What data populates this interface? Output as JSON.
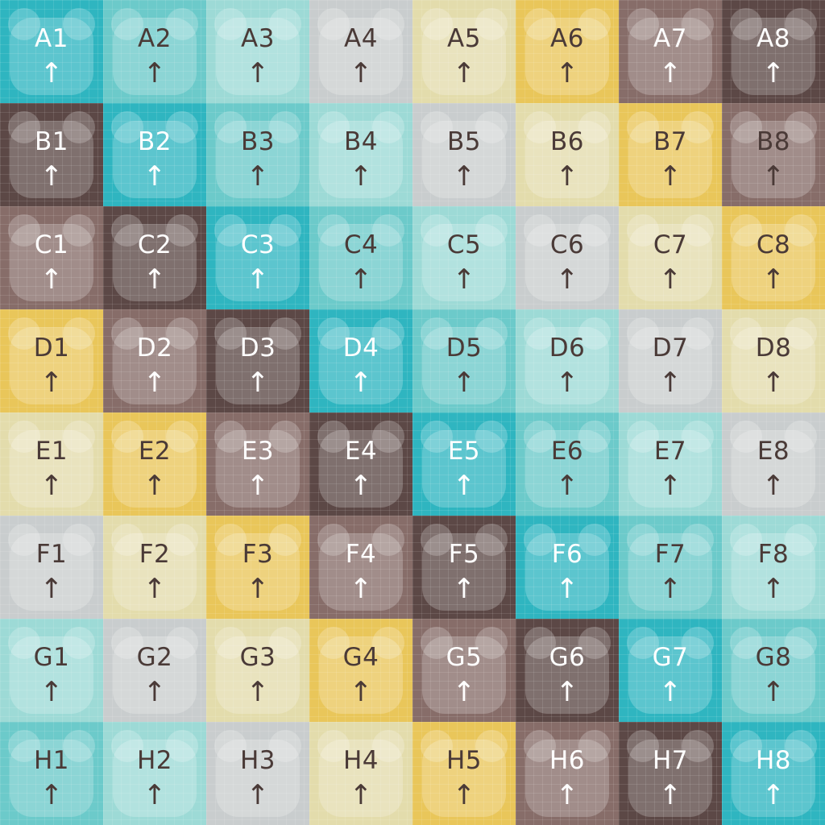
{
  "palette": {
    "teal": "#2fb5c0",
    "teal_mid": "#6ccaca",
    "teal_light": "#9ddad6",
    "gray": "#c9cdce",
    "cream": "#e3dcac",
    "yellow": "#e9c65a",
    "brown_mid": "#876d69",
    "brown_dark": "#5c4846",
    "text_light": "#ffffff",
    "text_dark": "#4a3a37"
  },
  "board": {
    "rows": [
      {
        "cells": [
          {
            "label": "A1",
            "arrow": "↑",
            "color": "teal"
          },
          {
            "label": "A2",
            "arrow": "↑",
            "color": "teal_mid"
          },
          {
            "label": "A3",
            "arrow": "↑",
            "color": "teal_light"
          },
          {
            "label": "A4",
            "arrow": "↑",
            "color": "gray"
          },
          {
            "label": "A5",
            "arrow": "↑",
            "color": "cream"
          },
          {
            "label": "A6",
            "arrow": "↑",
            "color": "yellow"
          },
          {
            "label": "A7",
            "arrow": "↑",
            "color": "brown_mid"
          },
          {
            "label": "A8",
            "arrow": "↑",
            "color": "brown_dark"
          }
        ]
      },
      {
        "cells": [
          {
            "label": "B1",
            "arrow": "↑",
            "color": "brown_dark"
          },
          {
            "label": "B2",
            "arrow": "↑",
            "color": "teal"
          },
          {
            "label": "B3",
            "arrow": "↑",
            "color": "teal_mid"
          },
          {
            "label": "B4",
            "arrow": "↑",
            "color": "teal_light"
          },
          {
            "label": "B5",
            "arrow": "↑",
            "color": "gray"
          },
          {
            "label": "B6",
            "arrow": "↑",
            "color": "cream"
          },
          {
            "label": "B7",
            "arrow": "↑",
            "color": "yellow"
          },
          {
            "label": "B8",
            "arrow": "↑",
            "color": "brown_mid"
          }
        ]
      },
      {
        "cells": [
          {
            "label": "C1",
            "arrow": "↑",
            "color": "brown_mid"
          },
          {
            "label": "C2",
            "arrow": "↑",
            "color": "brown_dark"
          },
          {
            "label": "C3",
            "arrow": "↑",
            "color": "teal"
          },
          {
            "label": "C4",
            "arrow": "↑",
            "color": "teal_mid"
          },
          {
            "label": "C5",
            "arrow": "↑",
            "color": "teal_light"
          },
          {
            "label": "C6",
            "arrow": "↑",
            "color": "gray"
          },
          {
            "label": "C7",
            "arrow": "↑",
            "color": "cream"
          },
          {
            "label": "C8",
            "arrow": "↑",
            "color": "yellow"
          }
        ]
      },
      {
        "cells": [
          {
            "label": "D1",
            "arrow": "↑",
            "color": "yellow"
          },
          {
            "label": "D2",
            "arrow": "↑",
            "color": "brown_mid"
          },
          {
            "label": "D3",
            "arrow": "↑",
            "color": "brown_dark"
          },
          {
            "label": "D4",
            "arrow": "↑",
            "color": "teal"
          },
          {
            "label": "D5",
            "arrow": "↑",
            "color": "teal_mid"
          },
          {
            "label": "D6",
            "arrow": "↑",
            "color": "teal_light"
          },
          {
            "label": "D7",
            "arrow": "↑",
            "color": "gray"
          },
          {
            "label": "D8",
            "arrow": "↑",
            "color": "cream"
          }
        ]
      },
      {
        "cells": [
          {
            "label": "E1",
            "arrow": "↑",
            "color": "cream"
          },
          {
            "label": "E2",
            "arrow": "↑",
            "color": "yellow"
          },
          {
            "label": "E3",
            "arrow": "↑",
            "color": "brown_mid"
          },
          {
            "label": "E4",
            "arrow": "↑",
            "color": "brown_dark"
          },
          {
            "label": "E5",
            "arrow": "↑",
            "color": "teal"
          },
          {
            "label": "E6",
            "arrow": "↑",
            "color": "teal_mid"
          },
          {
            "label": "E7",
            "arrow": "↑",
            "color": "teal_light"
          },
          {
            "label": "E8",
            "arrow": "↑",
            "color": "gray"
          }
        ]
      },
      {
        "cells": [
          {
            "label": "F1",
            "arrow": "↑",
            "color": "gray"
          },
          {
            "label": "F2",
            "arrow": "↑",
            "color": "cream"
          },
          {
            "label": "F3",
            "arrow": "↑",
            "color": "yellow"
          },
          {
            "label": "F4",
            "arrow": "↑",
            "color": "brown_mid"
          },
          {
            "label": "F5",
            "arrow": "↑",
            "color": "brown_dark"
          },
          {
            "label": "F6",
            "arrow": "↑",
            "color": "teal"
          },
          {
            "label": "F7",
            "arrow": "↑",
            "color": "teal_mid"
          },
          {
            "label": "F8",
            "arrow": "↑",
            "color": "teal_light"
          }
        ]
      },
      {
        "cells": [
          {
            "label": "G1",
            "arrow": "↑",
            "color": "teal_light"
          },
          {
            "label": "G2",
            "arrow": "↑",
            "color": "gray"
          },
          {
            "label": "G3",
            "arrow": "↑",
            "color": "cream"
          },
          {
            "label": "G4",
            "arrow": "↑",
            "color": "yellow"
          },
          {
            "label": "G5",
            "arrow": "↑",
            "color": "brown_mid"
          },
          {
            "label": "G6",
            "arrow": "↑",
            "color": "brown_dark"
          },
          {
            "label": "G7",
            "arrow": "↑",
            "color": "teal"
          },
          {
            "label": "G8",
            "arrow": "↑",
            "color": "teal_mid"
          }
        ]
      },
      {
        "cells": [
          {
            "label": "H1",
            "arrow": "↑",
            "color": "teal_mid"
          },
          {
            "label": "H2",
            "arrow": "↑",
            "color": "teal_light"
          },
          {
            "label": "H3",
            "arrow": "↑",
            "color": "gray"
          },
          {
            "label": "H4",
            "arrow": "↑",
            "color": "cream"
          },
          {
            "label": "H5",
            "arrow": "↑",
            "color": "yellow"
          },
          {
            "label": "H6",
            "arrow": "↑",
            "color": "brown_mid"
          },
          {
            "label": "H7",
            "arrow": "↑",
            "color": "brown_dark"
          },
          {
            "label": "H8",
            "arrow": "↑",
            "color": "teal"
          }
        ]
      }
    ]
  }
}
